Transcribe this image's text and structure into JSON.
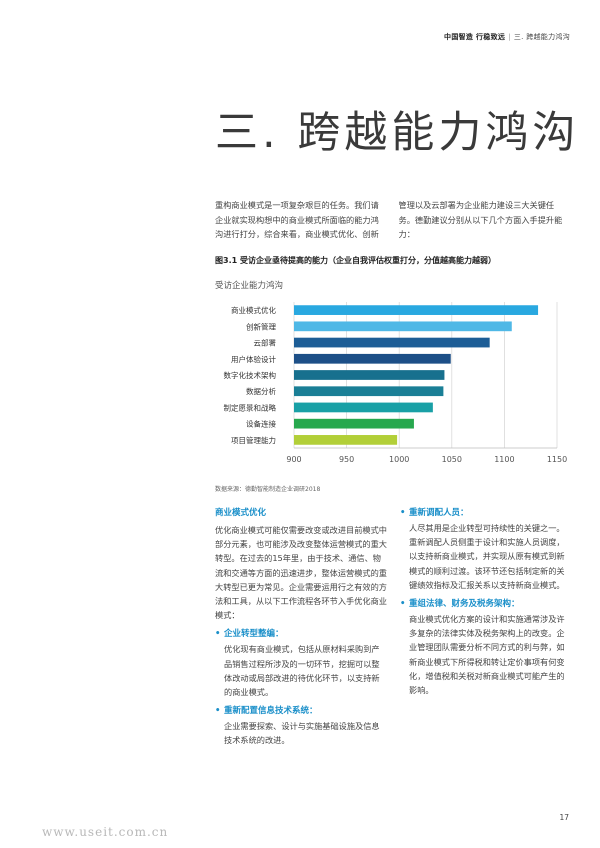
{
  "header": {
    "brand": "中国智造 行稳致远",
    "separator": "|",
    "section": "三. 跨越能力鸿沟"
  },
  "title": "三. 跨越能力鸿沟",
  "intro": "重构商业模式是一项复杂艰巨的任务。我们请企业就实现构想中的商业模式所面临的能力鸿沟进行打分，综合来看，商业模式优化、创新管理以及云部署为企业能力建设三大关键任务。德勤建议分别从以下几个方面入手提升能力：",
  "figure_title": "图3.1 受访企业亟待提高的能力（企业自我评估权重打分，分值越高能力越弱）",
  "chart_subtitle": "受访企业能力鸿沟",
  "chart_data": {
    "type": "bar",
    "orientation": "horizontal",
    "categories": [
      "商业模式优化",
      "创新管理",
      "云部署",
      "用户体验设计",
      "数字化技术架构",
      "数据分析",
      "制定愿景和战略",
      "设备连接",
      "项目管理能力"
    ],
    "values": [
      1132,
      1107,
      1086,
      1049,
      1043,
      1042,
      1032,
      1014,
      998
    ],
    "colors": [
      "#29a8e0",
      "#4fb8e6",
      "#1c5d96",
      "#1d4f87",
      "#17708e",
      "#1a7f96",
      "#19a0a6",
      "#27a84e",
      "#b2cf38"
    ],
    "xlim": [
      900,
      1150
    ],
    "xticks": [
      "900",
      "950",
      "1000",
      "1050",
      "1100",
      "1150"
    ],
    "grid": true
  },
  "source": "数据来源：德勤智能制造企业调研2018",
  "left": {
    "heading": "商业模式优化",
    "body": "优化商业模式可能仅需要改变或改进目前模式中部分元素，也可能涉及改变整体运营模式的重大转型。在过去的15年里，由于技术、通信、物流和交通等方面的迅速进步，整体运营模式的重大转型已更为常见。企业需要运用行之有效的方法和工具，从以下工作流程各环节入手优化商业模式：",
    "bullets": [
      {
        "head": "企业转型整编：",
        "body": "优化现有商业模式，包括从原材料采购到产品销售过程所涉及的一切环节，挖掘可以整体改动或局部改进的待优化环节，以支持新的商业模式。"
      },
      {
        "head": "重新配置信息技术系统：",
        "body": "企业需要探索、设计与实施基础设施及信息技术系统的改进。"
      }
    ]
  },
  "right": {
    "bullets": [
      {
        "head": "重新调配人员：",
        "body": "人尽其用是企业转型可持续性的关键之一。重新调配人员侧重于设计和实施人员调度，以支持新商业模式，并实现从原有模式到新模式的顺利过渡。该环节还包括制定新的关键绩效指标及汇报关系以支持新商业模式。"
      },
      {
        "head": "重组法律、财务及税务架构：",
        "body": "商业模式优化方案的设计和实施通常涉及许多复杂的法律实体及税务架构上的改变。企业管理团队需要分析不同方式的利与弊，如新商业模式下所得税和转让定价事项有何变化，增值税和关税对新商业模式可能产生的影响。"
      }
    ]
  },
  "page_number": "17",
  "watermark": "www.useit.com.cn",
  "bullet_symbol": "•"
}
